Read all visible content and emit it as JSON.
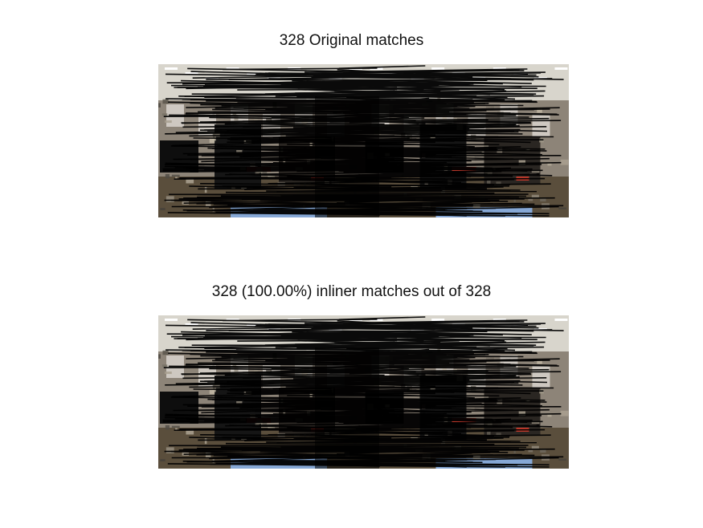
{
  "figure": {
    "panels": [
      {
        "title": "328 Original matches"
      },
      {
        "title": "328 (100.00%) inliner matches out of 328"
      }
    ]
  },
  "colors": {
    "background": "#ffffff",
    "match_lines": "#000000",
    "ceiling": "#d8d5cc",
    "wall": "#8d8478",
    "floor": "#5a4e3c",
    "screen": "#86a8d6",
    "red_object": "#c0392b",
    "dark_furniture": "#151515"
  },
  "icons": [
    "office-scene-image-pair"
  ]
}
